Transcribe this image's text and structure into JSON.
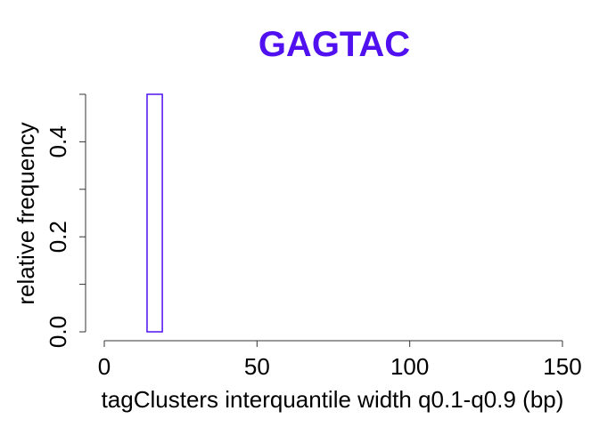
{
  "chart_data": {
    "type": "histogram",
    "title": "GAGTAC",
    "xlabel": "tagClusters interquantile width q0.1-q0.9 (bp)",
    "ylabel": "relative frequency",
    "xlim": [
      0,
      150
    ],
    "ylim": [
      0,
      0.5
    ],
    "x_ticks": [
      "0",
      "50",
      "100",
      "150"
    ],
    "y_ticks": [
      "0.0",
      "0.2",
      "0.4"
    ],
    "grid": false,
    "legend": "none",
    "color": "#5010F0",
    "bins": [
      {
        "x0": 14,
        "x1": 19,
        "value": 0.5
      }
    ]
  }
}
